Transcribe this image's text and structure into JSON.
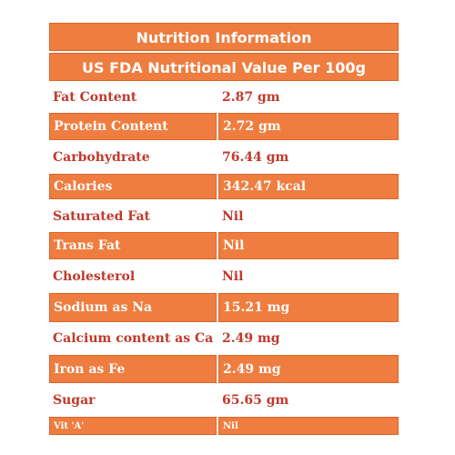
{
  "header": {
    "title": "Nutrition Information",
    "subtitle": "US FDA Nutritional Value Per 100g"
  },
  "rows": [
    {
      "label": "Fat Content",
      "value": "2.87 gm"
    },
    {
      "label": "Protein Content",
      "value": "2.72 gm"
    },
    {
      "label": "Carbohydrate",
      "value": "76.44 gm"
    },
    {
      "label": "Calories",
      "value": "342.47 kcal"
    },
    {
      "label": "Saturated Fat",
      "value": "Nil"
    },
    {
      "label": "Trans Fat",
      "value": "Nil"
    },
    {
      "label": "Cholesterol",
      "value": "Nil"
    },
    {
      "label": "Sodium as Na",
      "value": "15.21 mg"
    },
    {
      "label": "Calcium content as Ca",
      "value": "2.49 mg"
    },
    {
      "label": "Iron as Fe",
      "value": "2.49 mg"
    },
    {
      "label": "Sugar",
      "value": "65.65 gm"
    },
    {
      "label": "Vit 'A'",
      "value": "Nil"
    }
  ],
  "colors": {
    "accent": "#ee7d3f",
    "label_text": "#c0392b",
    "header_text": "#ffffff"
  }
}
